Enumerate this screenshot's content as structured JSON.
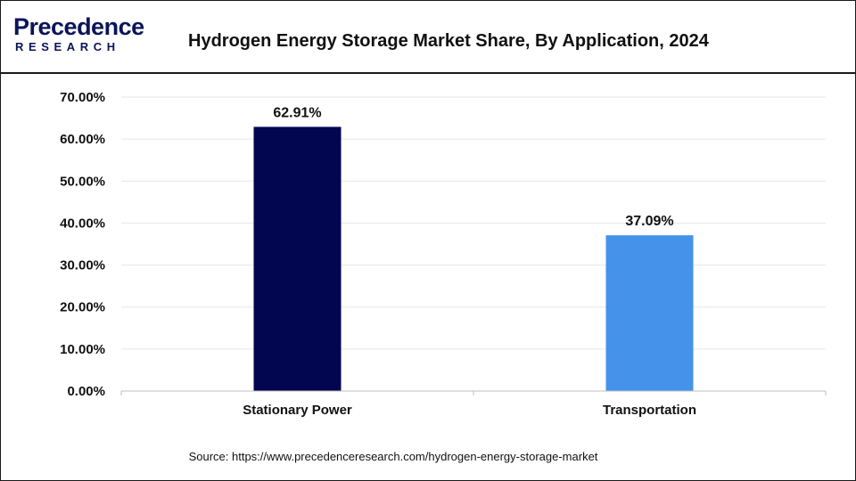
{
  "brand": {
    "name": "Precedence",
    "sub": "RESEARCH"
  },
  "title": "Hydrogen Energy Storage Market Share, By Application, 2024",
  "source": "Source: https://www.precedenceresearch.com/hydrogen-energy-storage-market",
  "chart_data": {
    "type": "bar",
    "categories": [
      "Stationary Power",
      "Transportation"
    ],
    "values": [
      62.91,
      37.09
    ],
    "data_labels": [
      "62.91%",
      "37.09%"
    ],
    "colors": [
      "#020550",
      "#4592ea"
    ],
    "yticks": [
      "0.00%",
      "10.00%",
      "20.00%",
      "30.00%",
      "40.00%",
      "50.00%",
      "60.00%",
      "70.00%"
    ],
    "ylim": [
      0,
      70
    ],
    "grid": true,
    "legend": "none"
  }
}
